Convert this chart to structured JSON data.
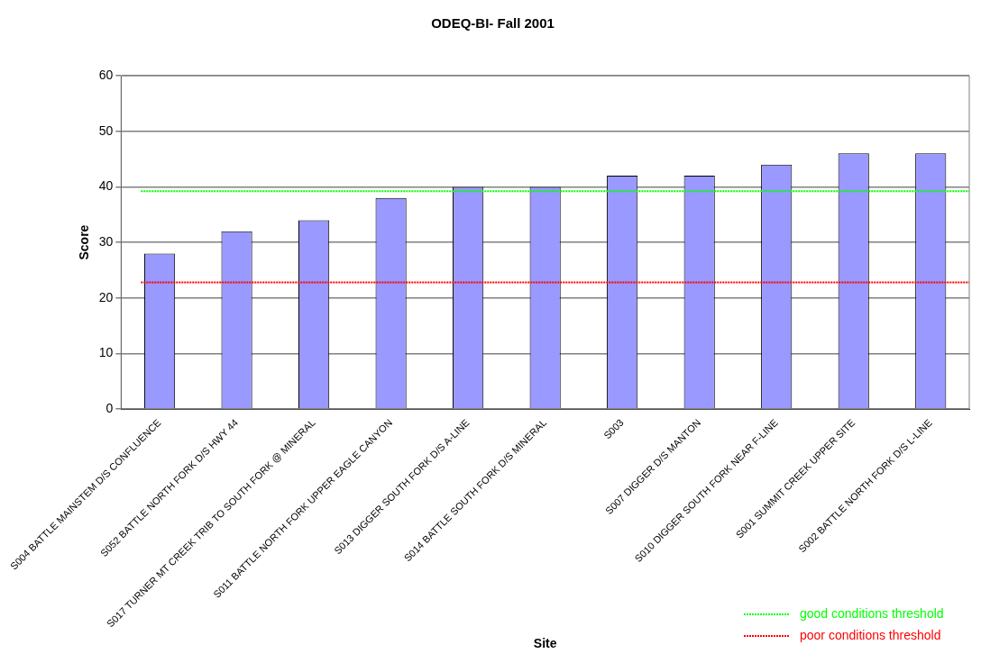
{
  "chart_data": {
    "type": "bar",
    "title": "ODEQ-BI- Fall 2001",
    "xlabel": "Site",
    "ylabel": "Score",
    "categories": [
      "S004 BATTLE MAINSTEM D/S CONFLUENCE",
      "S052 BATTLE NORTH FORK D/S HWY 44",
      "S017 TURNER MT CREEK TRIB TO SOUTH FORK @ MINERAL",
      "S011 BATTLE NORTH FORK UPPER EAGLE CANYON",
      "S013 DIGGER SOUTH FORK D/S A-LINE",
      "S014 BATTLE SOUTH FORK D/S MINERAL",
      "S003",
      "S007 DIGGER D/S MANTON",
      "S010 DIGGER SOUTH FORK NEAR F-LINE",
      "S001 SUMMIT CREEK UPPER SITE",
      "S002 BATTLE NORTH FORK D/S L-LINE"
    ],
    "values": [
      28,
      32,
      34,
      38,
      40,
      40,
      42,
      42,
      44,
      46,
      46
    ],
    "color": "#9999ff",
    "ylim": [
      0,
      60
    ],
    "yticks": [
      0,
      10,
      20,
      30,
      40,
      50,
      60
    ],
    "grid": "y",
    "ref_lines": [
      {
        "axis": "y",
        "value": 39.2,
        "label": "good conditions threshold",
        "color": "#00ff00",
        "line_style": "dotted"
      },
      {
        "axis": "y",
        "value": 22.8,
        "label": "poor conditions threshold",
        "color": "#ff0000",
        "line_style": "dotted"
      }
    ],
    "legend": "bottom right"
  }
}
